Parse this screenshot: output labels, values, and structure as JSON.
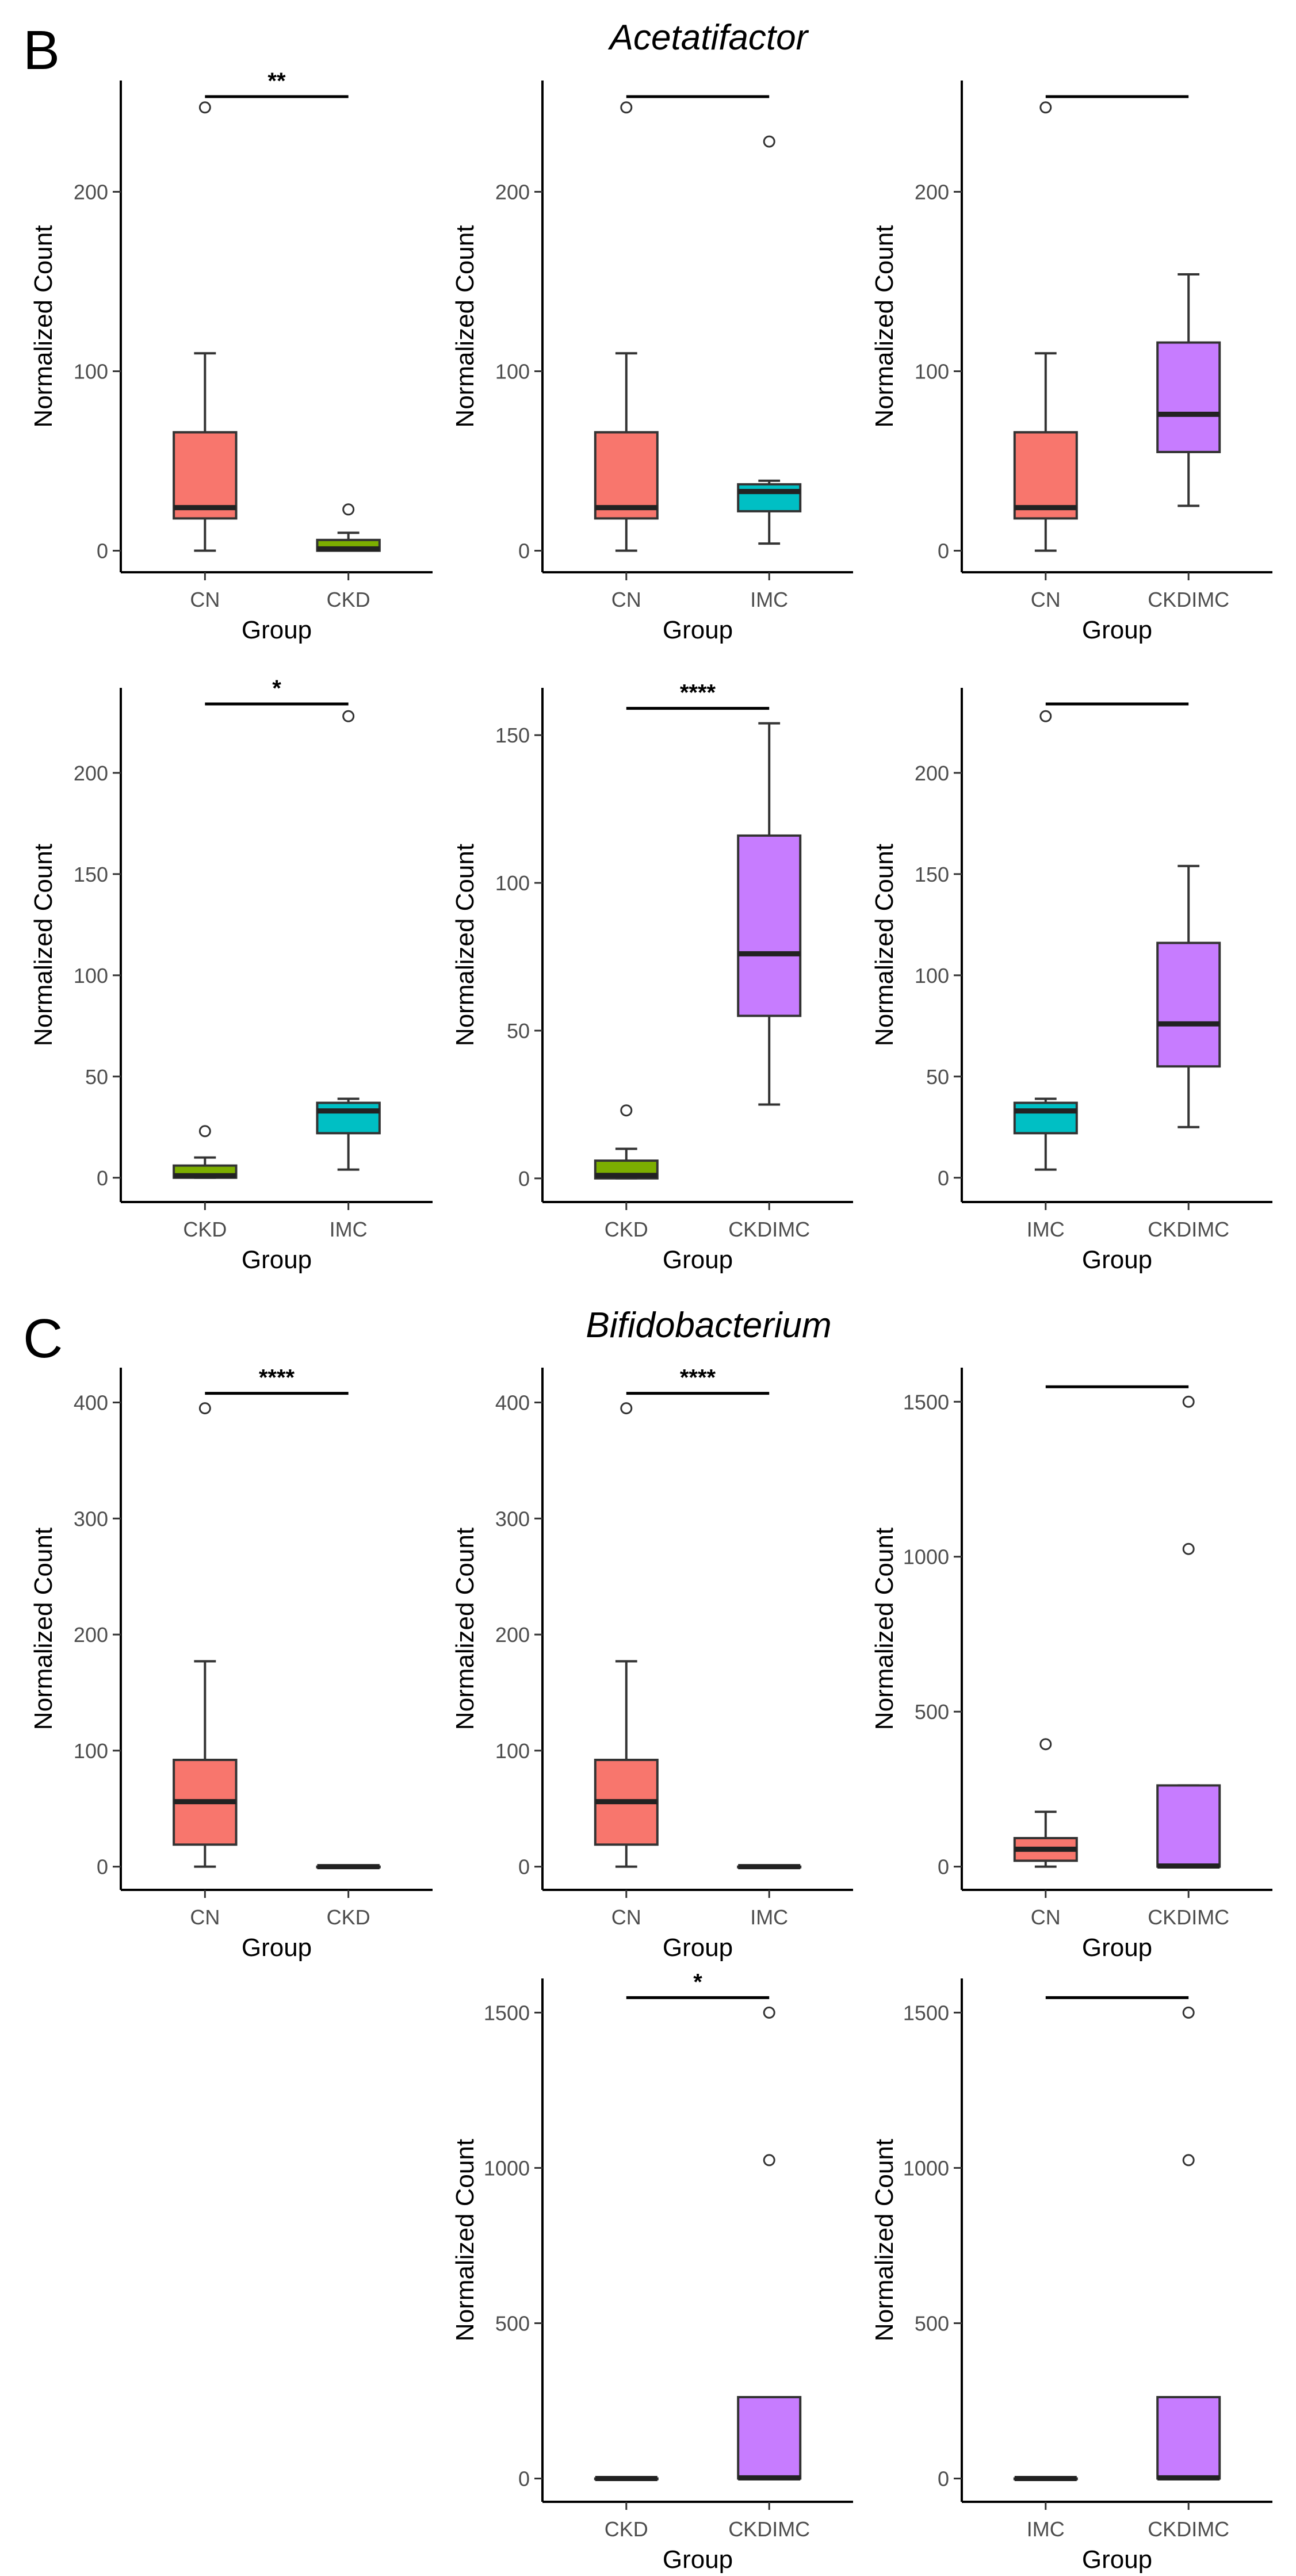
{
  "figure": {
    "sections": [
      {
        "letter": "B",
        "title": "Acetatifactor"
      },
      {
        "letter": "C",
        "title": "Bifidobacterium"
      }
    ]
  },
  "chart_data": [
    {
      "type": "box",
      "section": "Acetatifactor",
      "xlabel": "Group",
      "ylabel": "Normalized Count",
      "ylim": [
        -12,
        262
      ],
      "yticks": [
        0,
        100,
        200
      ],
      "significance": "**",
      "groups": [
        {
          "name": "CN",
          "color": "#F8766D",
          "min": 0,
          "q1": 18,
          "median": 24,
          "q3": 66,
          "max": 110,
          "outliers": [
            247
          ]
        },
        {
          "name": "CKD",
          "color": "#7CAE00",
          "min": 0,
          "q1": 0,
          "median": 1,
          "q3": 6,
          "max": 10,
          "outliers": [
            23
          ]
        }
      ]
    },
    {
      "type": "box",
      "section": "Acetatifactor",
      "xlabel": "Group",
      "ylabel": "Normalized Count",
      "ylim": [
        -12,
        262
      ],
      "yticks": [
        0,
        100,
        200
      ],
      "significance": "",
      "groups": [
        {
          "name": "CN",
          "color": "#F8766D",
          "min": 0,
          "q1": 18,
          "median": 24,
          "q3": 66,
          "max": 110,
          "outliers": [
            247
          ]
        },
        {
          "name": "IMC",
          "color": "#00BFC4",
          "min": 4,
          "q1": 22,
          "median": 33,
          "q3": 37,
          "max": 39,
          "outliers": [
            228
          ]
        }
      ]
    },
    {
      "type": "box",
      "section": "Acetatifactor",
      "xlabel": "Group",
      "ylabel": "Normalized Count",
      "ylim": [
        -12,
        262
      ],
      "yticks": [
        0,
        100,
        200
      ],
      "significance": "",
      "groups": [
        {
          "name": "CN",
          "color": "#F8766D",
          "min": 0,
          "q1": 18,
          "median": 24,
          "q3": 66,
          "max": 110,
          "outliers": [
            247
          ]
        },
        {
          "name": "CKDIMC",
          "color": "#C77CFF",
          "min": 25,
          "q1": 55,
          "median": 76,
          "q3": 116,
          "max": 154,
          "outliers": []
        }
      ]
    },
    {
      "type": "box",
      "section": "Acetatifactor",
      "xlabel": "Group",
      "ylabel": "Normalized Count",
      "ylim": [
        -12,
        242
      ],
      "yticks": [
        0,
        50,
        100,
        150,
        200
      ],
      "significance": "*",
      "groups": [
        {
          "name": "CKD",
          "color": "#7CAE00",
          "min": 0,
          "q1": 0,
          "median": 1,
          "q3": 6,
          "max": 10,
          "outliers": [
            23
          ]
        },
        {
          "name": "IMC",
          "color": "#00BFC4",
          "min": 4,
          "q1": 22,
          "median": 33,
          "q3": 37,
          "max": 39,
          "outliers": [
            228
          ]
        }
      ]
    },
    {
      "type": "box",
      "section": "Acetatifactor",
      "xlabel": "Group",
      "ylabel": "Normalized Count",
      "ylim": [
        -8,
        166
      ],
      "yticks": [
        0,
        50,
        100,
        150
      ],
      "significance": "****",
      "groups": [
        {
          "name": "CKD",
          "color": "#7CAE00",
          "min": 0,
          "q1": 0,
          "median": 1,
          "q3": 6,
          "max": 10,
          "outliers": [
            23
          ]
        },
        {
          "name": "CKDIMC",
          "color": "#C77CFF",
          "min": 25,
          "q1": 55,
          "median": 76,
          "q3": 116,
          "max": 154,
          "outliers": []
        }
      ]
    },
    {
      "type": "box",
      "section": "Acetatifactor",
      "xlabel": "Group",
      "ylabel": "Normalized Count",
      "ylim": [
        -12,
        242
      ],
      "yticks": [
        0,
        50,
        100,
        150,
        200
      ],
      "significance": "",
      "groups": [
        {
          "name": "IMC",
          "color": "#00BFC4",
          "min": 4,
          "q1": 22,
          "median": 33,
          "q3": 37,
          "max": 39,
          "outliers": [
            228
          ]
        },
        {
          "name": "CKDIMC",
          "color": "#C77CFF",
          "min": 25,
          "q1": 55,
          "median": 76,
          "q3": 116,
          "max": 154,
          "outliers": []
        }
      ]
    },
    {
      "type": "box",
      "section": "Bifidobacterium",
      "xlabel": "Group",
      "ylabel": "Normalized Count",
      "ylim": [
        -20,
        430
      ],
      "yticks": [
        0,
        100,
        200,
        300,
        400
      ],
      "significance": "****",
      "groups": [
        {
          "name": "CN",
          "color": "#F8766D",
          "min": 0,
          "q1": 19,
          "median": 56,
          "q3": 92,
          "max": 177,
          "outliers": [
            395
          ]
        },
        {
          "name": "CKD",
          "color": "#7CAE00",
          "min": 0,
          "q1": 0,
          "median": 0,
          "q3": 0,
          "max": 0,
          "outliers": []
        }
      ]
    },
    {
      "type": "box",
      "section": "Bifidobacterium",
      "xlabel": "Group",
      "ylabel": "Normalized Count",
      "ylim": [
        -20,
        430
      ],
      "yticks": [
        0,
        100,
        200,
        300,
        400
      ],
      "significance": "****",
      "groups": [
        {
          "name": "CN",
          "color": "#F8766D",
          "min": 0,
          "q1": 19,
          "median": 56,
          "q3": 92,
          "max": 177,
          "outliers": [
            395
          ]
        },
        {
          "name": "IMC",
          "color": "#00BFC4",
          "min": 0,
          "q1": 0,
          "median": 0,
          "q3": 0,
          "max": 0,
          "outliers": []
        }
      ]
    },
    {
      "type": "box",
      "section": "Bifidobacterium",
      "xlabel": "Group",
      "ylabel": "Normalized Count",
      "ylim": [
        -75,
        1610
      ],
      "yticks": [
        0,
        500,
        1000,
        1500
      ],
      "significance": "",
      "groups": [
        {
          "name": "CN",
          "color": "#F8766D",
          "min": 0,
          "q1": 19,
          "median": 56,
          "q3": 92,
          "max": 177,
          "outliers": [
            395
          ]
        },
        {
          "name": "CKDIMC",
          "color": "#C77CFF",
          "min": 0,
          "q1": 0,
          "median": 2,
          "q3": 262,
          "max": 262,
          "outliers": [
            1025,
            1500
          ]
        }
      ]
    },
    {
      "type": "box",
      "section": "Bifidobacterium",
      "xlabel": "Group",
      "ylabel": "Normalized Count",
      "ylim": [
        -75,
        1610
      ],
      "yticks": [
        0,
        500,
        1000,
        1500
      ],
      "significance": "*",
      "groups": [
        {
          "name": "CKD",
          "color": "#7CAE00",
          "min": 0,
          "q1": 0,
          "median": 0,
          "q3": 0,
          "max": 0,
          "outliers": []
        },
        {
          "name": "CKDIMC",
          "color": "#C77CFF",
          "min": 0,
          "q1": 0,
          "median": 2,
          "q3": 262,
          "max": 262,
          "outliers": [
            1025,
            1500
          ]
        }
      ]
    },
    {
      "type": "box",
      "section": "Bifidobacterium",
      "xlabel": "Group",
      "ylabel": "Normalized Count",
      "ylim": [
        -75,
        1610
      ],
      "yticks": [
        0,
        500,
        1000,
        1500
      ],
      "significance": "",
      "groups": [
        {
          "name": "IMC",
          "color": "#00BFC4",
          "min": 0,
          "q1": 0,
          "median": 0,
          "q3": 0,
          "max": 0,
          "outliers": []
        },
        {
          "name": "CKDIMC",
          "color": "#C77CFF",
          "min": 0,
          "q1": 0,
          "median": 2,
          "q3": 262,
          "max": 262,
          "outliers": [
            1025,
            1500
          ]
        }
      ]
    }
  ]
}
